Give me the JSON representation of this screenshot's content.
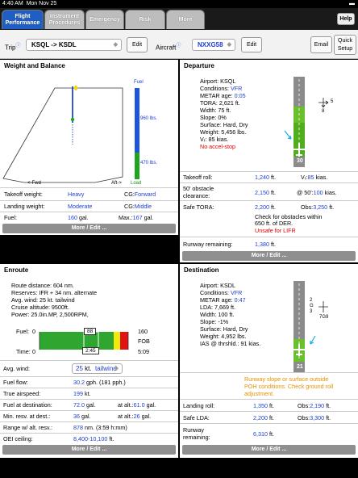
{
  "status": {
    "time": "4:40 AM",
    "date": "Mon Nov 25"
  },
  "tabs": [
    {
      "label": "Flight Performance",
      "active": true
    },
    {
      "label": "Instrument Procedures"
    },
    {
      "label": "Emergency"
    },
    {
      "label": "Risk"
    },
    {
      "label": "More"
    }
  ],
  "help_label": "Help",
  "toolbar": {
    "trip_label": "Trip",
    "trip_value": "KSQL -> KSDL",
    "edit1": "Edit",
    "aircraft_label": "Aircraft",
    "aircraft_value": "NXXG58",
    "edit2": "Edit",
    "email": "Email",
    "quick_setup": "Quick Setup"
  },
  "wb": {
    "title": "Weight and Balance",
    "fuel_label": "Fuel",
    "fuel_top": "960 lbs.",
    "fuel_bottom": "470 lbs.",
    "load_label": "Load",
    "fwd": "<-Fwd",
    "aft": "Aft->",
    "rows": [
      {
        "l": "Takeoff weight:",
        "v": "Heavy",
        "r": "CG:",
        "rv": "Forward"
      },
      {
        "l": "Landing weight:",
        "v": "Moderate",
        "r": "CG:",
        "rv": "Middle"
      },
      {
        "l": "Fuel:",
        "v": "160",
        "u": "gal.",
        "r": "Max.:",
        "rv": "167",
        "ru": "gal."
      }
    ],
    "more": "More / Edit ..."
  },
  "departure": {
    "title": "Departure",
    "airport": "Airport: KSQL",
    "cond_label": "Conditions:",
    "cond": "VFR",
    "metar_label": "METAR age:",
    "metar": "0:05",
    "lines": [
      "TORA: 2,621 ft.",
      "Width: 75 ft.",
      "Slope: 0%",
      "Surface: Hard, Dry",
      "Weight: 5,456 lbs.",
      "Vᵣ: 85 kias."
    ],
    "accel": "No accel-stop",
    "rwy": "30",
    "wind_a": "5",
    "wind_b": "8",
    "rows": [
      {
        "l": "Takeoff roll:",
        "v": "1,240",
        "u": "ft.",
        "r": "Vᵣ:",
        "rv": "85",
        "ru": "kias."
      },
      {
        "l": "50' obstacle",
        "l2": "clearance:",
        "v": "2,150",
        "u": "ft.",
        "r": "@ 50':",
        "rv": "100",
        "ru": "kias."
      },
      {
        "l": "Safe TORA:",
        "v": "2,200",
        "u": "ft.",
        "r": "Obs:",
        "rv": "3,250",
        "ru": "ft."
      }
    ],
    "obs_note": [
      "Check for obstacles within",
      "650 ft. of DER."
    ],
    "unsafe": "Unsafe for LIFR",
    "remaining_label": "Runway remaining:",
    "remaining": "1,380",
    "remaining_u": "ft.",
    "more": "More / Edit ..."
  },
  "enroute": {
    "title": "Enroute",
    "lines": [
      "Route distance: 604 nm.",
      "Reserves: IFR + 34 nm. alternate",
      "Avg. wind: 25 kt. tailwind",
      "Cruise altitude: 9500ft.",
      "Power: 25.0in.MP, 2,500RPM,"
    ],
    "fuel_label": "Fuel:",
    "time_label": "Time:",
    "zero1": "0",
    "zero2": "0",
    "fuel_mid": "88",
    "time_mid": "2:45",
    "fuel_max": "160",
    "fob": "FOB",
    "time_max": "5:09",
    "fuel_fraction": 0.55,
    "avg_wind_label": "Avg. wind:",
    "avg_wind_value": "25",
    "avg_wind_unit": "kt.",
    "wind_dir": "tailwind",
    "rows": [
      {
        "l": "Fuel flow:",
        "v": "30.2",
        "u": "gph. (181 pph.)"
      },
      {
        "l": "True airspeed:",
        "v": "199",
        "u": "kt."
      },
      {
        "l": "Fuel at destination:",
        "v": "72.0",
        "u": "gal.",
        "r": "at alt.:",
        "rv": "61.0",
        "ru": "gal."
      },
      {
        "l": "Min. resv. at dest.:",
        "v": "36",
        "u": "gal.",
        "r": "at alt.:",
        "rv": "26",
        "ru": "gal."
      },
      {
        "l": "Range w/ alt. resv.:",
        "v": "878",
        "u": "nm.  (3:59 h:mm)"
      },
      {
        "l": "OEI ceiling:",
        "v": "8,400-10,100",
        "u": "ft."
      }
    ],
    "more": "More / Edit ..."
  },
  "destination": {
    "title": "Destination",
    "airport": "Airport: KSDL",
    "cond_label": "Conditions:",
    "cond": "VFR",
    "metar_label": "METAR age:",
    "metar": "0:47",
    "lines": [
      "LDA: 7,669 ft.",
      "Width: 100 ft.",
      "Slope: -1%",
      "Surface: Hard, Dry",
      "Weight: 4,952 lbs.",
      "IAS @ thrshld.: 91 kias."
    ],
    "rwy": "21",
    "wind_a": "2",
    "wind_b": "G",
    "wind_c": "3",
    "wind_d": "7G9",
    "warning": [
      "Runway slope or surface outside",
      "POH conditions.  Check ground roll",
      "adjustment."
    ],
    "rows": [
      {
        "l": "Landing roll:",
        "v": "1,350",
        "u": "ft.",
        "r": "Obs:",
        "rv": "2,190",
        "ru": "ft."
      },
      {
        "l": "Safe LDA:",
        "v": "2,200",
        "u": "ft.",
        "r": "Obs:",
        "rv": "3,300",
        "ru": "ft."
      }
    ],
    "remaining_label": "Runway",
    "remaining_label2": "remaining:",
    "remaining": "6,310",
    "remaining_u": "ft.",
    "more": "More / Edit ..."
  }
}
